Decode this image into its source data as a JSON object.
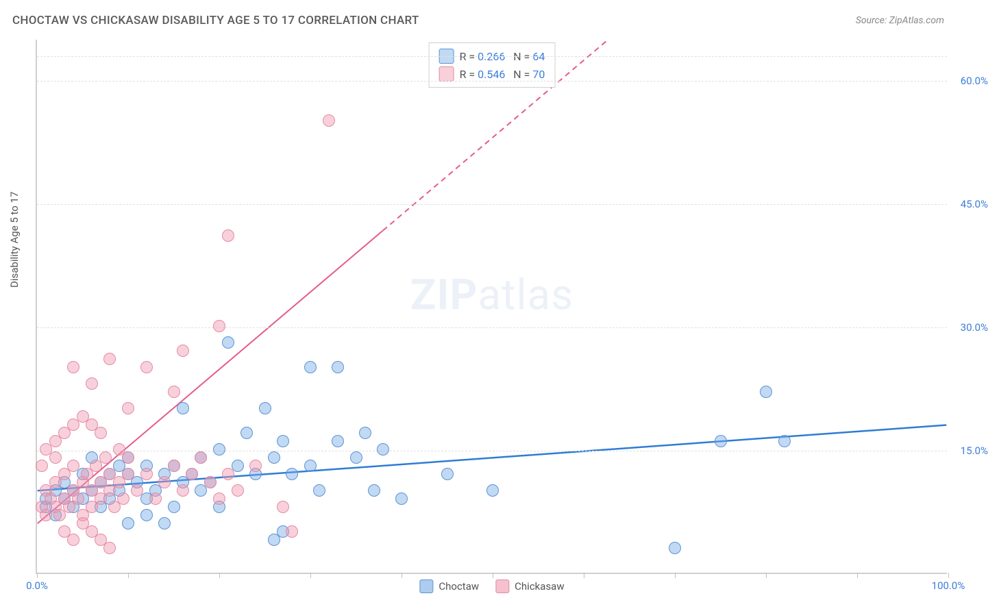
{
  "title": "CHOCTAW VS CHICKASAW DISABILITY AGE 5 TO 17 CORRELATION CHART",
  "source": "Source: ZipAtlas.com",
  "y_axis_label": "Disability Age 5 to 17",
  "watermark": {
    "bold": "ZIP",
    "rest": "atlas"
  },
  "chart": {
    "type": "scatter",
    "background_color": "#ffffff",
    "grid_color": "#e0e0e0",
    "axis_color": "#d0d0d0",
    "xlim": [
      0,
      100
    ],
    "ylim": [
      0,
      65
    ],
    "x_ticks": [
      0,
      10,
      20,
      30,
      40,
      50,
      60,
      70,
      80,
      90,
      100
    ],
    "x_tick_labels": {
      "0": "0.0%",
      "100": "100.0%"
    },
    "y_ticks": [
      15,
      30,
      45,
      60
    ],
    "y_tick_labels": {
      "15": "15.0%",
      "30": "30.0%",
      "45": "45.0%",
      "60": "60.0%"
    },
    "series": [
      {
        "name": "Choctaw",
        "color_fill": "rgba(120, 170, 230, 0.45)",
        "color_stroke": "#5a93d1",
        "marker_radius": 9,
        "trend": {
          "color": "#2e7cd6",
          "width": 2.5,
          "x1": 0,
          "y1": 10,
          "x2": 100,
          "y2": 18,
          "dash_from_x": null
        },
        "R": "0.266",
        "N": "64",
        "points": [
          [
            1,
            8
          ],
          [
            1,
            9
          ],
          [
            2,
            10
          ],
          [
            2,
            7
          ],
          [
            3,
            9
          ],
          [
            3,
            11
          ],
          [
            4,
            10
          ],
          [
            4,
            8
          ],
          [
            5,
            9
          ],
          [
            5,
            12
          ],
          [
            6,
            10
          ],
          [
            6,
            14
          ],
          [
            7,
            11
          ],
          [
            7,
            8
          ],
          [
            8,
            12
          ],
          [
            8,
            9
          ],
          [
            9,
            13
          ],
          [
            9,
            10
          ],
          [
            10,
            12
          ],
          [
            10,
            14
          ],
          [
            11,
            11
          ],
          [
            12,
            13
          ],
          [
            12,
            9
          ],
          [
            13,
            10
          ],
          [
            14,
            12
          ],
          [
            14,
            6
          ],
          [
            15,
            13
          ],
          [
            15,
            8
          ],
          [
            16,
            11
          ],
          [
            16,
            20
          ],
          [
            17,
            12
          ],
          [
            18,
            14
          ],
          [
            18,
            10
          ],
          [
            19,
            11
          ],
          [
            20,
            15
          ],
          [
            20,
            8
          ],
          [
            22,
            13
          ],
          [
            23,
            17
          ],
          [
            24,
            12
          ],
          [
            25,
            20
          ],
          [
            26,
            14
          ],
          [
            26,
            4
          ],
          [
            27,
            16
          ],
          [
            27,
            5
          ],
          [
            28,
            12
          ],
          [
            30,
            13
          ],
          [
            30,
            25
          ],
          [
            31,
            10
          ],
          [
            33,
            16
          ],
          [
            33,
            25
          ],
          [
            35,
            14
          ],
          [
            36,
            17
          ],
          [
            37,
            10
          ],
          [
            38,
            15
          ],
          [
            40,
            9
          ],
          [
            21,
            28
          ],
          [
            45,
            12
          ],
          [
            50,
            10
          ],
          [
            75,
            16
          ],
          [
            80,
            22
          ],
          [
            82,
            16
          ],
          [
            70,
            3
          ],
          [
            10,
            6
          ],
          [
            12,
            7
          ]
        ]
      },
      {
        "name": "Chickasaw",
        "color_fill": "rgba(240, 150, 175, 0.45)",
        "color_stroke": "#e48aa3",
        "marker_radius": 9,
        "trend": {
          "color": "#e65a8a",
          "width": 2,
          "x1": 0,
          "y1": 6,
          "x2": 100,
          "y2": 100,
          "dash_from_x": 38
        },
        "R": "0.546",
        "N": "70",
        "points": [
          [
            0.5,
            8
          ],
          [
            1,
            7
          ],
          [
            1,
            10
          ],
          [
            1.5,
            9
          ],
          [
            2,
            8
          ],
          [
            2,
            11
          ],
          [
            2.5,
            7
          ],
          [
            3,
            9
          ],
          [
            3,
            12
          ],
          [
            3.5,
            8
          ],
          [
            4,
            10
          ],
          [
            4,
            13
          ],
          [
            4.5,
            9
          ],
          [
            5,
            11
          ],
          [
            5,
            7
          ],
          [
            5.5,
            12
          ],
          [
            6,
            10
          ],
          [
            6,
            8
          ],
          [
            6.5,
            13
          ],
          [
            7,
            9
          ],
          [
            7,
            11
          ],
          [
            7.5,
            14
          ],
          [
            8,
            10
          ],
          [
            8,
            12
          ],
          [
            8.5,
            8
          ],
          [
            9,
            11
          ],
          [
            9,
            15
          ],
          [
            9.5,
            9
          ],
          [
            10,
            12
          ],
          [
            10,
            14
          ],
          [
            2,
            16
          ],
          [
            3,
            17
          ],
          [
            4,
            18
          ],
          [
            5,
            19
          ],
          [
            6,
            18
          ],
          [
            7,
            17
          ],
          [
            0.5,
            13
          ],
          [
            1,
            15
          ],
          [
            2,
            14
          ],
          [
            11,
            10
          ],
          [
            12,
            12
          ],
          [
            13,
            9
          ],
          [
            14,
            11
          ],
          [
            15,
            13
          ],
          [
            16,
            10
          ],
          [
            17,
            12
          ],
          [
            18,
            14
          ],
          [
            19,
            11
          ],
          [
            20,
            9
          ],
          [
            21,
            12
          ],
          [
            22,
            10
          ],
          [
            24,
            13
          ],
          [
            3,
            5
          ],
          [
            4,
            4
          ],
          [
            5,
            6
          ],
          [
            6,
            5
          ],
          [
            7,
            4
          ],
          [
            8,
            3
          ],
          [
            12,
            25
          ],
          [
            16,
            27
          ],
          [
            10,
            20
          ],
          [
            15,
            22
          ],
          [
            20,
            30
          ],
          [
            21,
            41
          ],
          [
            4,
            25
          ],
          [
            6,
            23
          ],
          [
            8,
            26
          ],
          [
            27,
            8
          ],
          [
            28,
            5
          ],
          [
            32,
            55
          ]
        ]
      }
    ],
    "legend_bottom": [
      {
        "label": "Choctaw",
        "swatch_fill": "rgba(120,170,230,0.6)",
        "swatch_stroke": "#5a93d1"
      },
      {
        "label": "Chickasaw",
        "swatch_fill": "rgba(240,150,175,0.6)",
        "swatch_stroke": "#e48aa3"
      }
    ]
  }
}
